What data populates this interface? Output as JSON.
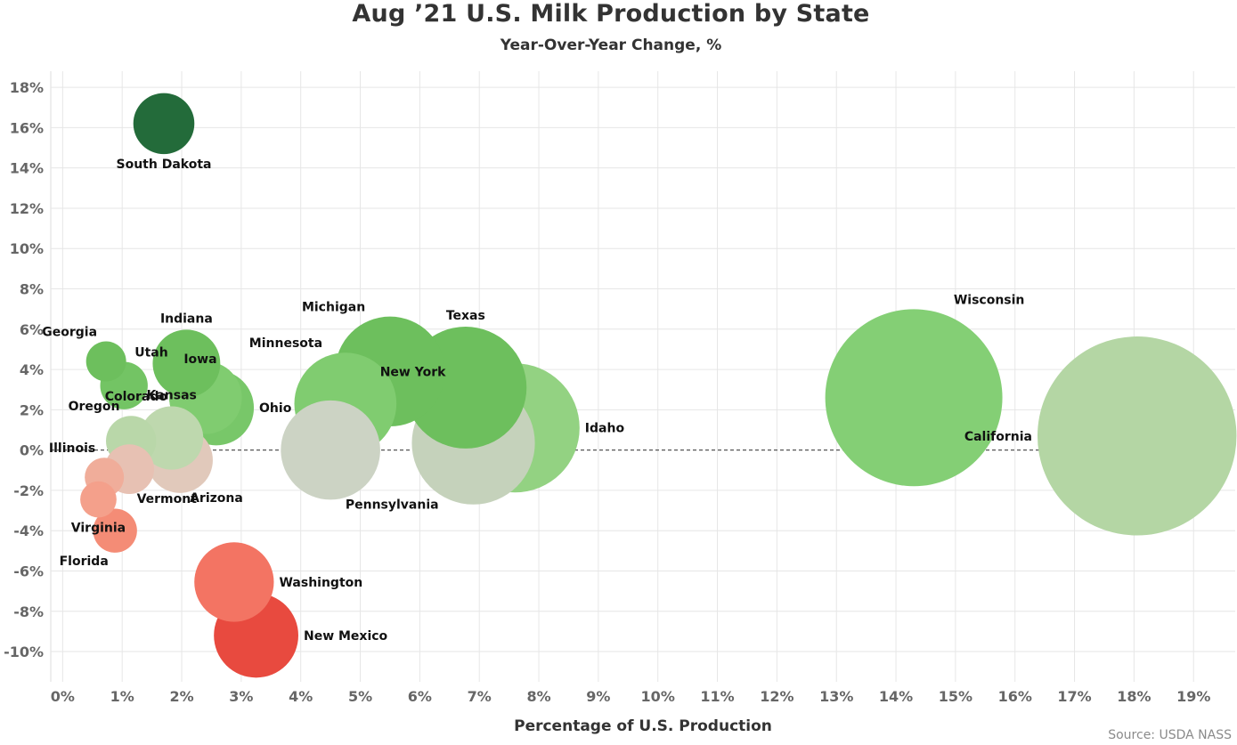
{
  "chart_data": {
    "type": "scatter",
    "title": "Aug ’21 U.S. Milk Production by State",
    "subtitle": "Year-Over-Year Change, %",
    "xlabel": "Percentage of U.S. Production",
    "ylabel": "",
    "xlim": [
      -0.2,
      19.7
    ],
    "ylim": [
      -11.5,
      18.8
    ],
    "x_ticks": [
      0,
      1,
      2,
      3,
      4,
      5,
      6,
      7,
      8,
      9,
      10,
      11,
      12,
      13,
      14,
      15,
      16,
      17,
      18,
      19
    ],
    "x_tick_labels": [
      "0%",
      "1%",
      "2%",
      "3%",
      "4%",
      "5%",
      "6%",
      "7%",
      "8%",
      "9%",
      "10%",
      "11%",
      "12%",
      "13%",
      "14%",
      "15%",
      "16%",
      "17%",
      "18%",
      "19%"
    ],
    "y_ticks": [
      -10,
      -8,
      -6,
      -4,
      -2,
      0,
      2,
      4,
      6,
      8,
      10,
      12,
      14,
      16,
      18
    ],
    "y_tick_labels": [
      "-10%",
      "-8%",
      "-6%",
      "-4%",
      "-2%",
      "0%",
      "2%",
      "4%",
      "6%",
      "8%",
      "10%",
      "12%",
      "14%",
      "16%",
      "18%"
    ],
    "grid": true,
    "zero_line": "dashed",
    "points": [
      {
        "label": "South Dakota",
        "x": 1.7,
        "y": 16.2,
        "color": "#236b3a",
        "label_pos": "below"
      },
      {
        "label": "Georgia",
        "x": 0.73,
        "y": 4.4,
        "color": "#6dbf5d",
        "label_pos": "upper-left"
      },
      {
        "label": "Indiana",
        "x": 2.08,
        "y": 4.3,
        "color": "#6dbf5d",
        "label_pos": "above"
      },
      {
        "label": "Utah",
        "x": 1.03,
        "y": 3.2,
        "color": "#73c464",
        "label_pos": "upper-right"
      },
      {
        "label": "Iowa",
        "x": 2.4,
        "y": 2.6,
        "color": "#80cc70",
        "label_pos": "above"
      },
      {
        "label": "Colorado",
        "x": 2.4,
        "y": 2.6,
        "color": "#80cc70",
        "label_pos": "left"
      },
      {
        "label": "Ohio",
        "x": 2.58,
        "y": 2.1,
        "color": "#78c769",
        "label_pos": "right"
      },
      {
        "label": "Michigan",
        "x": 5.5,
        "y": 3.9,
        "color": "#6dbf5d",
        "label_pos": "upper-left"
      },
      {
        "label": "Texas",
        "x": 6.77,
        "y": 3.1,
        "color": "#6dbf5d",
        "label_pos": "above"
      },
      {
        "label": "Minnesota",
        "x": 4.75,
        "y": 2.3,
        "color": "#80cc70",
        "label_pos": "upper-left"
      },
      {
        "label": "Idaho",
        "x": 7.6,
        "y": 1.1,
        "color": "#93d282",
        "label_pos": "right"
      },
      {
        "label": "Wisconsin",
        "x": 14.3,
        "y": 2.6,
        "color": "#84cf75",
        "label_pos": "upper-right"
      },
      {
        "label": "California",
        "x": 18.05,
        "y": 0.7,
        "color": "#b4d6a4",
        "label_pos": "left"
      },
      {
        "label": "New York",
        "x": 6.9,
        "y": 0.35,
        "color": "#c5d2bb",
        "label_pos": "upper-left"
      },
      {
        "label": "Pennsylvania",
        "x": 4.5,
        "y": 0.0,
        "color": "#ccd3c4",
        "label_pos": "lower-right"
      },
      {
        "label": "Oregon",
        "x": 1.15,
        "y": 0.45,
        "color": "#b9d7a9",
        "label_pos": "upper-left"
      },
      {
        "label": "Kansas",
        "x": 1.83,
        "y": 0.6,
        "color": "#bed8ae",
        "label_pos": "above"
      },
      {
        "label": "Illinois",
        "x": 0.7,
        "y": -1.35,
        "color": "#f0ad9a",
        "label_pos": "upper-left"
      },
      {
        "label": "Vermont",
        "x": 1.12,
        "y": -0.95,
        "color": "#e7c1b3",
        "label_pos": "lower-right"
      },
      {
        "label": "Arizona",
        "x": 1.97,
        "y": -0.5,
        "color": "#e1c9bb",
        "label_pos": "lower-right"
      },
      {
        "label": "Virginia",
        "x": 0.6,
        "y": -2.45,
        "color": "#f4a08b",
        "label_pos": "below"
      },
      {
        "label": "Florida",
        "x": 0.88,
        "y": -4.0,
        "color": "#f48c76",
        "label_pos": "lower-left"
      },
      {
        "label": "Washington",
        "x": 2.88,
        "y": -6.55,
        "color": "#f37463",
        "label_pos": "right"
      },
      {
        "label": "New Mexico",
        "x": 3.25,
        "y": -9.2,
        "color": "#e84a3f",
        "label_pos": "right"
      }
    ]
  },
  "source": "Source: USDA NASS"
}
